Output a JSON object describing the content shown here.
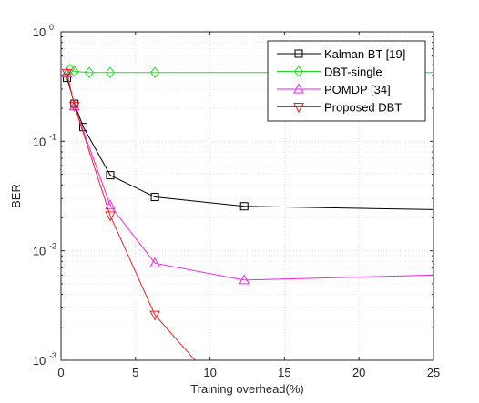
{
  "chart_data": {
    "type": "line",
    "xlabel": "Training overhead(%)",
    "ylabel": "BER",
    "xlim": [
      0,
      25
    ],
    "ylim": [
      0.001,
      1
    ],
    "y_scale": "log",
    "grid": true,
    "legend_position": "top-right",
    "x_tick_labels": [
      "0",
      "5",
      "10",
      "15",
      "20",
      "25"
    ],
    "x_tick_values": [
      0,
      5,
      10,
      15,
      20,
      25
    ],
    "y_tick_values": [
      0.001,
      0.01,
      0.1,
      1
    ],
    "y_tick_labels": [
      {
        "base": "10",
        "exp": "-3"
      },
      {
        "base": "10",
        "exp": "-2"
      },
      {
        "base": "10",
        "exp": "-1"
      },
      {
        "base": "10",
        "exp": "0"
      }
    ],
    "series": [
      {
        "name": "Kalman BT [19]",
        "color": "#000000",
        "marker": "square",
        "x": [
          0.4,
          0.9,
          1.5,
          3.3,
          6.3,
          12.3,
          25
        ],
        "y": [
          0.38,
          0.22,
          0.135,
          0.049,
          0.031,
          0.0255,
          0.0238
        ]
      },
      {
        "name": "DBT-single",
        "color": "#22dd22",
        "marker": "diamond",
        "x": [
          0.4,
          0.6,
          0.9,
          1.9,
          3.3,
          6.3,
          25
        ],
        "y": [
          0.41,
          0.455,
          0.435,
          0.425,
          0.425,
          0.425,
          0.425
        ]
      },
      {
        "name": "POMDP [34]",
        "color": "#ee22ee",
        "marker": "triangle-up",
        "x": [
          0.4,
          0.9,
          3.3,
          6.3,
          12.3,
          25
        ],
        "y": [
          0.42,
          0.21,
          0.026,
          0.0077,
          0.0054,
          0.006
        ]
      },
      {
        "name": "Proposed DBT",
        "color": "#ee2222",
        "marker": "triangle-down",
        "x": [
          0.4,
          0.9,
          3.3,
          6.3,
          9.0
        ],
        "y": [
          0.42,
          0.21,
          0.021,
          0.0026,
          0.001
        ]
      }
    ]
  }
}
